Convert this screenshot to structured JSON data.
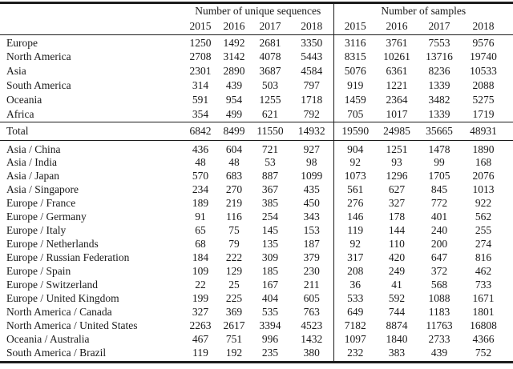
{
  "table": {
    "col_groups": [
      {
        "label": "Number of unique sequences",
        "years": [
          "2015",
          "2016",
          "2017",
          "2018"
        ]
      },
      {
        "label": "Number of samples",
        "years": [
          "2015",
          "2016",
          "2017",
          "2018"
        ]
      }
    ],
    "summary_rows": [
      {
        "label": "Europe",
        "values": [
          "1250",
          "1492",
          "2681",
          "3350",
          "3116",
          "3761",
          "7553",
          "9576"
        ]
      },
      {
        "label": "North America",
        "values": [
          "2708",
          "3142",
          "4078",
          "5443",
          "8315",
          "10261",
          "13716",
          "19740"
        ]
      },
      {
        "label": "Asia",
        "values": [
          "2301",
          "2890",
          "3687",
          "4584",
          "5076",
          "6361",
          "8236",
          "10533"
        ]
      },
      {
        "label": "South America",
        "values": [
          "314",
          "439",
          "503",
          "797",
          "919",
          "1221",
          "1339",
          "2088"
        ]
      },
      {
        "label": "Oceania",
        "values": [
          "591",
          "954",
          "1255",
          "1718",
          "1459",
          "2364",
          "3482",
          "5275"
        ]
      },
      {
        "label": "Africa",
        "values": [
          "354",
          "499",
          "621",
          "792",
          "705",
          "1017",
          "1339",
          "1719"
        ]
      }
    ],
    "total_rows": [
      {
        "label": "Total",
        "values": [
          "6842",
          "8499",
          "11550",
          "14932",
          "19590",
          "24985",
          "35665",
          "48931"
        ]
      }
    ],
    "detail_rows": [
      {
        "label": "Asia / China",
        "values": [
          "436",
          "604",
          "721",
          "927",
          "904",
          "1251",
          "1478",
          "1890"
        ]
      },
      {
        "label": "Asia / India",
        "values": [
          "48",
          "48",
          "53",
          "98",
          "92",
          "93",
          "99",
          "168"
        ]
      },
      {
        "label": "Asia / Japan",
        "values": [
          "570",
          "683",
          "887",
          "1099",
          "1073",
          "1296",
          "1705",
          "2076"
        ]
      },
      {
        "label": "Asia / Singapore",
        "values": [
          "234",
          "270",
          "367",
          "435",
          "561",
          "627",
          "845",
          "1013"
        ]
      },
      {
        "label": "Europe / France",
        "values": [
          "189",
          "219",
          "385",
          "450",
          "276",
          "327",
          "772",
          "922"
        ]
      },
      {
        "label": "Europe / Germany",
        "values": [
          "91",
          "116",
          "254",
          "343",
          "146",
          "178",
          "401",
          "562"
        ]
      },
      {
        "label": "Europe / Italy",
        "values": [
          "65",
          "75",
          "145",
          "153",
          "119",
          "144",
          "240",
          "255"
        ]
      },
      {
        "label": "Europe / Netherlands",
        "values": [
          "68",
          "79",
          "135",
          "187",
          "92",
          "110",
          "200",
          "274"
        ]
      },
      {
        "label": "Europe / Russian Federation",
        "values": [
          "184",
          "222",
          "309",
          "379",
          "317",
          "420",
          "647",
          "816"
        ]
      },
      {
        "label": "Europe / Spain",
        "values": [
          "109",
          "129",
          "185",
          "230",
          "208",
          "249",
          "372",
          "462"
        ]
      },
      {
        "label": "Europe / Switzerland",
        "values": [
          "22",
          "25",
          "167",
          "211",
          "36",
          "41",
          "568",
          "733"
        ]
      },
      {
        "label": "Europe / United Kingdom",
        "values": [
          "199",
          "225",
          "404",
          "605",
          "533",
          "592",
          "1088",
          "1671"
        ]
      },
      {
        "label": "North America / Canada",
        "values": [
          "327",
          "369",
          "535",
          "763",
          "649",
          "744",
          "1183",
          "1801"
        ]
      },
      {
        "label": "North America / United States",
        "values": [
          "2263",
          "2617",
          "3394",
          "4523",
          "7182",
          "8874",
          "11763",
          "16808"
        ]
      },
      {
        "label": "Oceania / Australia",
        "values": [
          "467",
          "751",
          "996",
          "1432",
          "1097",
          "1840",
          "2733",
          "4366"
        ]
      },
      {
        "label": "South America / Brazil",
        "values": [
          "119",
          "192",
          "235",
          "380",
          "232",
          "383",
          "439",
          "752"
        ]
      }
    ]
  }
}
